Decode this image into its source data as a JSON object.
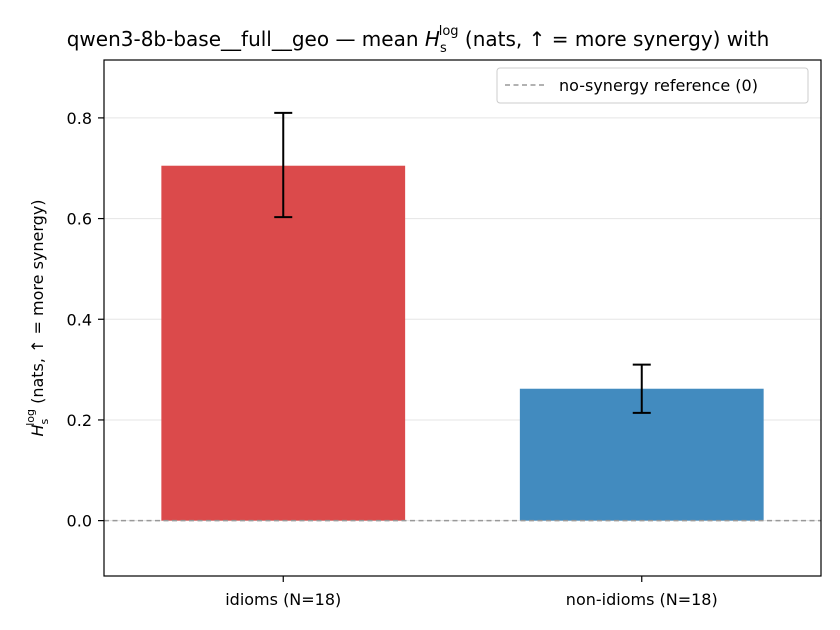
{
  "chart_data": {
    "type": "bar",
    "title_prefix": "qwen3-8b-base__full__geo — mean ",
    "title_suffix": " (nats, ↑ = more synergy) with",
    "h_symbol": "H",
    "h_sub": "s",
    "h_sup": "log",
    "ylabel_suffix": " (nats, ↑ = more synergy)",
    "categories": [
      "idioms (N=18)",
      "non-idioms (N=18)"
    ],
    "values": [
      0.705,
      0.262
    ],
    "error_low": [
      0.603,
      0.214
    ],
    "error_high": [
      0.81,
      0.31
    ],
    "bar_colors": [
      "#db4a4b",
      "#428bbf"
    ],
    "ylim": [
      -0.11,
      0.915
    ],
    "yticks": [
      0.0,
      0.2,
      0.4,
      0.6,
      0.8
    ],
    "ytick_labels": [
      "0.0",
      "0.2",
      "0.4",
      "0.6",
      "0.8"
    ],
    "reference_line": {
      "value": 0,
      "label": "no-synergy reference (0)",
      "color": "#999999",
      "style": "dashed"
    },
    "grid": "horizontal",
    "legend_position": "top-right"
  }
}
